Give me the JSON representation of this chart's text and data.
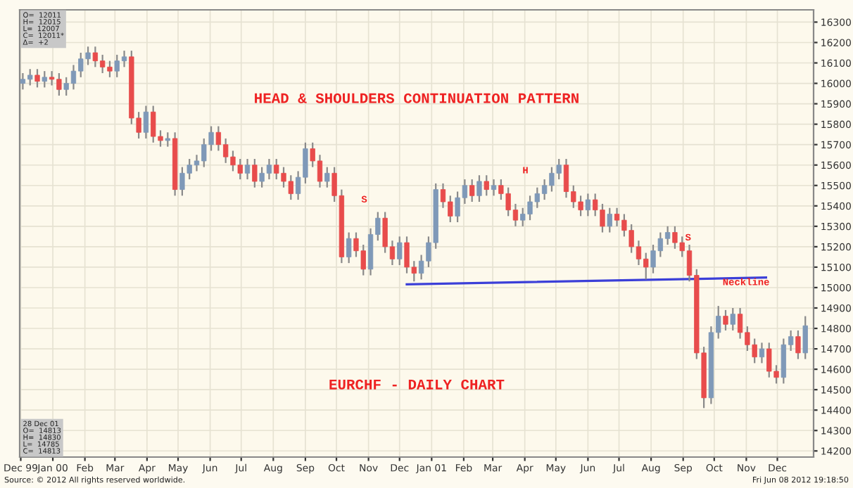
{
  "chart_data": {
    "type": "candlestick",
    "title": "HEAD & SHOULDERS CONTINUATION PATTERN",
    "subtitle": "EURCHF - DAILY CHART",
    "x": [
      "1999-12-03",
      "1999-12-10",
      "1999-12-17",
      "1999-12-24",
      "1999-12-31",
      "2000-01-07",
      "2000-01-14",
      "2000-01-21",
      "2000-01-28",
      "2000-02-04",
      "2000-02-11",
      "2000-02-18",
      "2000-02-25",
      "2000-03-03",
      "2000-03-10",
      "2000-03-17",
      "2000-03-24",
      "2000-03-31",
      "2000-04-07",
      "2000-04-14",
      "2000-04-21",
      "2000-04-28",
      "2000-05-05",
      "2000-05-12",
      "2000-05-19",
      "2000-05-26",
      "2000-06-02",
      "2000-06-09",
      "2000-06-16",
      "2000-06-23",
      "2000-06-30",
      "2000-07-07",
      "2000-07-14",
      "2000-07-21",
      "2000-07-28",
      "2000-08-04",
      "2000-08-11",
      "2000-08-18",
      "2000-08-25",
      "2000-09-01",
      "2000-09-08",
      "2000-09-15",
      "2000-09-22",
      "2000-09-29",
      "2000-10-06",
      "2000-10-13",
      "2000-10-20",
      "2000-10-27",
      "2000-11-03",
      "2000-11-10",
      "2000-11-17",
      "2000-11-24",
      "2000-12-01",
      "2000-12-08",
      "2000-12-15",
      "2000-12-22",
      "2000-12-29",
      "2001-01-05",
      "2001-01-12",
      "2001-01-19",
      "2001-01-26",
      "2001-02-02",
      "2001-02-09",
      "2001-02-16",
      "2001-02-23",
      "2001-03-02",
      "2001-03-09",
      "2001-03-16",
      "2001-03-23",
      "2001-03-30",
      "2001-04-06",
      "2001-04-13",
      "2001-04-20",
      "2001-04-27",
      "2001-05-04",
      "2001-05-11",
      "2001-05-18",
      "2001-05-25",
      "2001-06-01",
      "2001-06-08",
      "2001-06-15",
      "2001-06-22",
      "2001-06-29",
      "2001-07-06",
      "2001-07-13",
      "2001-07-20",
      "2001-07-27",
      "2001-08-03",
      "2001-08-10",
      "2001-08-17",
      "2001-08-24",
      "2001-08-31",
      "2001-09-07",
      "2001-09-14",
      "2001-09-21",
      "2001-09-28",
      "2001-10-05",
      "2001-10-12",
      "2001-10-19",
      "2001-10-26",
      "2001-11-02",
      "2001-11-09",
      "2001-11-16",
      "2001-11-23",
      "2001-11-30",
      "2001-12-07",
      "2001-12-14",
      "2001-12-21",
      "2001-12-28"
    ],
    "ohlc": [
      [
        16000,
        16050,
        15970,
        16020
      ],
      [
        16020,
        16070,
        15990,
        16040
      ],
      [
        16040,
        16070,
        15980,
        16010
      ],
      [
        16010,
        16060,
        15980,
        16030
      ],
      [
        16030,
        16060,
        15990,
        16020
      ],
      [
        16020,
        16050,
        15940,
        15970
      ],
      [
        15970,
        16030,
        15940,
        16000
      ],
      [
        16000,
        16090,
        15970,
        16060
      ],
      [
        16060,
        16150,
        16030,
        16120
      ],
      [
        16120,
        16180,
        16090,
        16150
      ],
      [
        16150,
        16180,
        16080,
        16110
      ],
      [
        16110,
        16140,
        16050,
        16080
      ],
      [
        16080,
        16110,
        16030,
        16060
      ],
      [
        16060,
        16140,
        16030,
        16110
      ],
      [
        16110,
        16160,
        16080,
        16130
      ],
      [
        16130,
        16160,
        15800,
        15830
      ],
      [
        15830,
        15860,
        15730,
        15760
      ],
      [
        15760,
        15890,
        15730,
        15860
      ],
      [
        15860,
        15890,
        15710,
        15740
      ],
      [
        15740,
        15770,
        15690,
        15720
      ],
      [
        15720,
        15760,
        15690,
        15730
      ],
      [
        15730,
        15760,
        15450,
        15480
      ],
      [
        15480,
        15590,
        15450,
        15560
      ],
      [
        15560,
        15630,
        15530,
        15600
      ],
      [
        15600,
        15650,
        15570,
        15620
      ],
      [
        15620,
        15730,
        15590,
        15700
      ],
      [
        15700,
        15790,
        15670,
        15760
      ],
      [
        15760,
        15790,
        15670,
        15700
      ],
      [
        15700,
        15730,
        15610,
        15640
      ],
      [
        15640,
        15670,
        15570,
        15600
      ],
      [
        15600,
        15630,
        15530,
        15560
      ],
      [
        15560,
        15630,
        15530,
        15600
      ],
      [
        15600,
        15630,
        15490,
        15520
      ],
      [
        15520,
        15590,
        15490,
        15560
      ],
      [
        15560,
        15630,
        15530,
        15600
      ],
      [
        15600,
        15630,
        15530,
        15560
      ],
      [
        15560,
        15590,
        15490,
        15520
      ],
      [
        15520,
        15550,
        15430,
        15460
      ],
      [
        15460,
        15570,
        15430,
        15540
      ],
      [
        15540,
        15710,
        15510,
        15680
      ],
      [
        15680,
        15710,
        15590,
        15620
      ],
      [
        15620,
        15650,
        15490,
        15520
      ],
      [
        15520,
        15590,
        15490,
        15560
      ],
      [
        15560,
        15590,
        15420,
        15450
      ],
      [
        15450,
        15480,
        15120,
        15150
      ],
      [
        15150,
        15270,
        15120,
        15240
      ],
      [
        15240,
        15270,
        15150,
        15180
      ],
      [
        15180,
        15210,
        15060,
        15090
      ],
      [
        15090,
        15290,
        15060,
        15260
      ],
      [
        15260,
        15370,
        15230,
        15340
      ],
      [
        15340,
        15370,
        15170,
        15200
      ],
      [
        15200,
        15230,
        15110,
        15140
      ],
      [
        15140,
        15250,
        15110,
        15220
      ],
      [
        15220,
        15250,
        15070,
        15100
      ],
      [
        15100,
        15130,
        15030,
        15070
      ],
      [
        15070,
        15160,
        15040,
        15130
      ],
      [
        15130,
        15250,
        15100,
        15220
      ],
      [
        15220,
        15510,
        15190,
        15480
      ],
      [
        15480,
        15510,
        15390,
        15420
      ],
      [
        15420,
        15450,
        15320,
        15350
      ],
      [
        15350,
        15470,
        15320,
        15440
      ],
      [
        15440,
        15530,
        15410,
        15500
      ],
      [
        15500,
        15530,
        15420,
        15450
      ],
      [
        15450,
        15550,
        15420,
        15520
      ],
      [
        15520,
        15550,
        15450,
        15480
      ],
      [
        15480,
        15530,
        15450,
        15500
      ],
      [
        15500,
        15530,
        15430,
        15460
      ],
      [
        15460,
        15490,
        15350,
        15380
      ],
      [
        15380,
        15410,
        15300,
        15330
      ],
      [
        15330,
        15390,
        15300,
        15360
      ],
      [
        15360,
        15450,
        15330,
        15420
      ],
      [
        15420,
        15490,
        15390,
        15460
      ],
      [
        15460,
        15530,
        15430,
        15500
      ],
      [
        15500,
        15590,
        15470,
        15560
      ],
      [
        15560,
        15630,
        15530,
        15600
      ],
      [
        15600,
        15630,
        15440,
        15470
      ],
      [
        15470,
        15500,
        15390,
        15420
      ],
      [
        15420,
        15450,
        15350,
        15380
      ],
      [
        15380,
        15460,
        15350,
        15430
      ],
      [
        15430,
        15460,
        15350,
        15380
      ],
      [
        15380,
        15410,
        15270,
        15300
      ],
      [
        15300,
        15390,
        15270,
        15360
      ],
      [
        15360,
        15390,
        15300,
        15330
      ],
      [
        15330,
        15360,
        15250,
        15280
      ],
      [
        15280,
        15310,
        15170,
        15200
      ],
      [
        15200,
        15230,
        15110,
        15140
      ],
      [
        15140,
        15170,
        15040,
        15100
      ],
      [
        15100,
        15210,
        15070,
        15180
      ],
      [
        15180,
        15270,
        15150,
        15240
      ],
      [
        15240,
        15300,
        15210,
        15270
      ],
      [
        15270,
        15300,
        15190,
        15220
      ],
      [
        15220,
        15250,
        15150,
        15180
      ],
      [
        15180,
        15210,
        15030,
        15060
      ],
      [
        15060,
        15090,
        14650,
        14680
      ],
      [
        14680,
        14710,
        14410,
        14460
      ],
      [
        14460,
        14810,
        14430,
        14780
      ],
      [
        14780,
        14910,
        14750,
        14860
      ],
      [
        14860,
        14890,
        14790,
        14820
      ],
      [
        14820,
        14900,
        14790,
        14870
      ],
      [
        14870,
        14900,
        14750,
        14780
      ],
      [
        14780,
        14810,
        14690,
        14720
      ],
      [
        14720,
        14750,
        14630,
        14660
      ],
      [
        14660,
        14730,
        14630,
        14700
      ],
      [
        14700,
        14730,
        14560,
        14590
      ],
      [
        14590,
        14620,
        14530,
        14560
      ],
      [
        14560,
        14750,
        14530,
        14720
      ],
      [
        14720,
        14790,
        14690,
        14760
      ],
      [
        14760,
        14790,
        14650,
        14680
      ],
      [
        14680,
        14860,
        14650,
        14813
      ]
    ],
    "colors": [
      "#7f99b8",
      "#7f99b8",
      "#e84c4c",
      "#7f99b8",
      "#e84c4c",
      "#e84c4c",
      "#7f99b8",
      "#7f99b8",
      "#7f99b8",
      "#7f99b8",
      "#e84c4c",
      "#e84c4c",
      "#e84c4c",
      "#7f99b8",
      "#7f99b8",
      "#e84c4c",
      "#e84c4c",
      "#7f99b8",
      "#e84c4c",
      "#e84c4c",
      "#7f99b8",
      "#e84c4c",
      "#7f99b8",
      "#7f99b8",
      "#7f99b8",
      "#7f99b8",
      "#7f99b8",
      "#e84c4c",
      "#e84c4c",
      "#e84c4c",
      "#e84c4c",
      "#7f99b8",
      "#e84c4c",
      "#7f99b8",
      "#7f99b8",
      "#e84c4c",
      "#e84c4c",
      "#e84c4c",
      "#7f99b8",
      "#7f99b8",
      "#e84c4c",
      "#e84c4c",
      "#7f99b8",
      "#e84c4c",
      "#e84c4c",
      "#7f99b8",
      "#e84c4c",
      "#e84c4c",
      "#7f99b8",
      "#7f99b8",
      "#e84c4c",
      "#e84c4c",
      "#7f99b8",
      "#e84c4c",
      "#e84c4c",
      "#7f99b8",
      "#7f99b8",
      "#7f99b8",
      "#e84c4c",
      "#e84c4c",
      "#7f99b8",
      "#7f99b8",
      "#e84c4c",
      "#7f99b8",
      "#e84c4c",
      "#7f99b8",
      "#e84c4c",
      "#e84c4c",
      "#e84c4c",
      "#7f99b8",
      "#7f99b8",
      "#7f99b8",
      "#7f99b8",
      "#7f99b8",
      "#7f99b8",
      "#e84c4c",
      "#e84c4c",
      "#e84c4c",
      "#7f99b8",
      "#e84c4c",
      "#e84c4c",
      "#7f99b8",
      "#e84c4c",
      "#e84c4c",
      "#e84c4c",
      "#e84c4c",
      "#e84c4c",
      "#7f99b8",
      "#7f99b8",
      "#7f99b8",
      "#e84c4c",
      "#e84c4c",
      "#e84c4c",
      "#e84c4c",
      "#e84c4c",
      "#7f99b8",
      "#7f99b8",
      "#e84c4c",
      "#7f99b8",
      "#e84c4c",
      "#e84c4c",
      "#e84c4c",
      "#7f99b8",
      "#e84c4c",
      "#e84c4c",
      "#7f99b8",
      "#7f99b8",
      "#e84c4c",
      "#7f99b8"
    ],
    "series": [
      {
        "type": "line",
        "color": "#3b3fd8",
        "x": [
          "2000-12-08",
          "2001-11-20"
        ],
        "values": [
          15016,
          15049
        ]
      }
    ],
    "xlim": [
      "1999-11-30",
      "2002-01-05"
    ],
    "xticks": [
      {
        "value": "1999-12-01",
        "label": "Dec 99"
      },
      {
        "value": "2000-01-01",
        "label": "Jan 00"
      },
      {
        "value": "2000-02-01",
        "label": "Feb"
      },
      {
        "value": "2000-03-01",
        "label": "Mar"
      },
      {
        "value": "2000-04-01",
        "label": "Apr"
      },
      {
        "value": "2000-05-01",
        "label": "May"
      },
      {
        "value": "2000-06-01",
        "label": "Jun"
      },
      {
        "value": "2000-07-01",
        "label": "Jul"
      },
      {
        "value": "2000-08-01",
        "label": "Aug"
      },
      {
        "value": "2000-09-01",
        "label": "Sep"
      },
      {
        "value": "2000-10-01",
        "label": "Oct"
      },
      {
        "value": "2000-11-01",
        "label": "Nov"
      },
      {
        "value": "2000-12-01",
        "label": "Dec"
      },
      {
        "value": "2001-01-01",
        "label": "Jan 01"
      },
      {
        "value": "2001-02-01",
        "label": "Feb"
      },
      {
        "value": "2001-03-01",
        "label": "Mar"
      },
      {
        "value": "2001-04-01",
        "label": "Apr"
      },
      {
        "value": "2001-05-01",
        "label": "May"
      },
      {
        "value": "2001-06-01",
        "label": "Jun"
      },
      {
        "value": "2001-07-01",
        "label": "Jul"
      },
      {
        "value": "2001-08-01",
        "label": "Aug"
      },
      {
        "value": "2001-09-01",
        "label": "Sep"
      },
      {
        "value": "2001-10-01",
        "label": "Oct"
      },
      {
        "value": "2001-11-01",
        "label": "Nov"
      },
      {
        "value": "2001-12-01",
        "label": "Dec"
      }
    ],
    "ylim": [
      14170,
      16360
    ],
    "yticks": [
      14200,
      14300,
      14400,
      14500,
      14600,
      14700,
      14800,
      14900,
      15000,
      15100,
      15200,
      15300,
      15400,
      15500,
      15600,
      15700,
      15800,
      15900,
      16000,
      16100,
      16200,
      16300
    ],
    "grid": true,
    "annotations": [
      "O=  12011\nH=  12015\nL=  12007\nC=  12011*\nΔ=  +2",
      "28 Dec 01\nO=  14813\nH=  14830\nL=  14785\nC=  14813",
      "Source: © 2012 All rights reserved worldwide.",
      "Fri Jun 08 2012 19:18:50",
      "S",
      "H",
      "S",
      "Neckline"
    ]
  }
}
